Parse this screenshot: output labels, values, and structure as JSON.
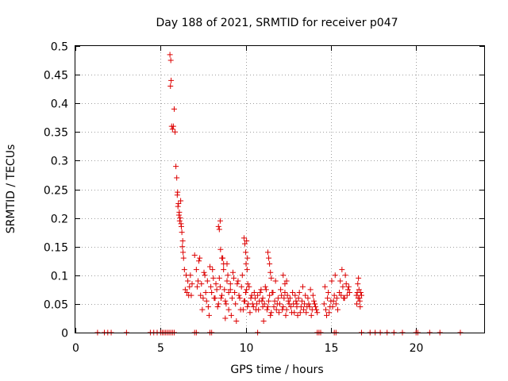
{
  "chart_data": {
    "type": "scatter",
    "title": "Day 188 of 2021, SRMTID for receiver p047",
    "xlabel": "GPS time / hours",
    "ylabel": "SRMTID / TECUs",
    "xlim": [
      0,
      24
    ],
    "ylim": [
      0,
      0.5
    ],
    "x_ticks": [
      0,
      5,
      10,
      15,
      20
    ],
    "x_tick_labels": [
      "0",
      "5",
      "10",
      "15",
      "20"
    ],
    "y_ticks": [
      0,
      0.05,
      0.1,
      0.15,
      0.2,
      0.25,
      0.3,
      0.35,
      0.4,
      0.45,
      0.5
    ],
    "y_tick_labels": [
      "0",
      "0.05",
      "0.1",
      "0.15",
      "0.2",
      "0.25",
      "0.3",
      "0.35",
      "0.4",
      "0.45",
      "0.5"
    ],
    "grid": true,
    "marker": "plus",
    "series_color": "#dd0000",
    "series": [
      {
        "name": "SRMTID",
        "x": [
          1.3,
          1.7,
          1.9,
          2.1,
          3.0,
          4.4,
          4.6,
          4.8,
          5.0,
          5.1,
          5.2,
          5.3,
          5.4,
          5.5,
          5.6,
          5.7,
          5.8,
          7.0,
          7.1,
          7.9,
          8.0,
          10.7,
          14.2,
          14.3,
          14.4,
          15.2,
          15.3,
          16.8,
          17.3,
          17.6,
          17.9,
          18.3,
          18.7,
          19.2,
          20.0,
          20.1,
          20.8,
          21.4,
          22.6,
          5.55,
          5.6,
          5.62,
          5.58,
          5.65,
          5.7,
          5.75,
          5.8,
          5.85,
          5.9,
          5.95,
          6.0,
          6.05,
          6.1,
          6.15,
          6.2,
          6.25,
          6.3,
          6.35,
          6.4,
          6.5,
          6.6,
          6.7,
          6.8,
          5.98,
          6.02,
          6.08,
          6.12,
          6.18,
          6.22,
          6.28,
          6.32,
          6.45,
          6.55,
          6.65,
          6.75,
          6.85,
          7.0,
          7.1,
          7.2,
          7.3,
          7.4,
          7.5,
          7.6,
          7.7,
          7.8,
          7.9,
          8.0,
          8.1,
          8.2,
          8.3,
          8.4,
          8.5,
          8.6,
          8.7,
          8.8,
          8.9,
          9.0,
          7.15,
          7.25,
          7.35,
          7.45,
          7.55,
          7.65,
          7.75,
          7.85,
          7.95,
          8.05,
          8.15,
          8.25,
          8.35,
          8.45,
          8.55,
          8.65,
          8.75,
          8.85,
          8.95,
          8.4,
          8.45,
          8.5,
          8.52,
          8.6,
          8.7,
          8.8,
          8.9,
          9.0,
          9.1,
          9.1,
          9.2,
          9.3,
          9.4,
          9.5,
          9.6,
          9.7,
          9.8,
          9.9,
          10.0,
          10.1,
          10.2,
          10.3,
          10.4,
          10.5,
          10.6,
          10.7,
          10.8,
          10.9,
          11.0,
          9.15,
          9.25,
          9.35,
          9.45,
          9.55,
          9.65,
          9.75,
          9.85,
          9.95,
          10.05,
          10.15,
          10.25,
          10.35,
          10.45,
          10.55,
          10.65,
          10.75,
          10.85,
          10.95,
          9.9,
          9.95,
          10.0,
          10.02,
          10.05,
          10.08,
          10.1,
          10.12,
          11.0,
          11.1,
          11.2,
          11.3,
          11.4,
          11.5,
          11.6,
          11.7,
          11.8,
          11.9,
          12.0,
          12.1,
          12.2,
          12.3,
          12.4,
          12.5,
          12.6,
          12.7,
          12.8,
          12.9,
          13.0,
          11.05,
          11.15,
          11.25,
          11.35,
          11.45,
          11.55,
          11.65,
          11.75,
          11.85,
          11.95,
          12.05,
          12.15,
          12.25,
          12.35,
          12.45,
          12.55,
          12.65,
          12.75,
          12.85,
          12.95,
          11.3,
          11.35,
          11.4,
          11.45,
          11.5,
          12.2,
          12.3,
          12.4,
          13.0,
          13.1,
          13.2,
          13.3,
          13.4,
          13.5,
          13.6,
          13.7,
          13.8,
          13.9,
          14.0,
          14.1,
          14.2,
          13.05,
          13.15,
          13.25,
          13.35,
          13.45,
          13.55,
          13.65,
          13.75,
          13.85,
          13.95,
          14.05,
          14.15,
          14.6,
          14.7,
          14.8,
          14.9,
          15.0,
          15.1,
          15.2,
          15.3,
          15.4,
          14.65,
          14.75,
          14.85,
          14.95,
          15.05,
          15.15,
          15.25,
          15.35,
          15.5,
          15.6,
          15.7,
          15.8,
          15.9,
          16.0,
          16.1,
          15.55,
          15.65,
          15.75,
          15.85,
          15.95,
          16.05,
          16.5,
          16.55,
          16.6,
          16.65,
          16.7,
          16.75,
          16.8,
          16.52,
          16.58,
          16.62,
          16.68,
          16.72
        ],
        "y": [
          0,
          0,
          0,
          0,
          0,
          0,
          0,
          0,
          0,
          0,
          0,
          0,
          0,
          0,
          0,
          0,
          0,
          0,
          0,
          0,
          0,
          0,
          0,
          0,
          0,
          0,
          0,
          0,
          0,
          0,
          0,
          0,
          0,
          0,
          0,
          0,
          0,
          0,
          0,
          0.485,
          0.475,
          0.44,
          0.43,
          0.36,
          0.355,
          0.36,
          0.39,
          0.35,
          0.29,
          0.27,
          0.245,
          0.225,
          0.21,
          0.2,
          0.19,
          0.175,
          0.16,
          0.13,
          0.11,
          0.1,
          0.09,
          0.08,
          0.065,
          0.24,
          0.22,
          0.205,
          0.195,
          0.23,
          0.185,
          0.15,
          0.14,
          0.075,
          0.07,
          0.065,
          0.1,
          0.085,
          0.135,
          0.11,
          0.09,
          0.13,
          0.085,
          0.06,
          0.1,
          0.055,
          0.045,
          0.115,
          0.07,
          0.095,
          0.06,
          0.075,
          0.05,
          0.08,
          0.065,
          0.12,
          0.055,
          0.09,
          0.07,
          0.08,
          0.125,
          0.065,
          0.04,
          0.105,
          0.07,
          0.09,
          0.03,
          0.08,
          0.11,
          0.06,
          0.085,
          0.045,
          0.095,
          0.06,
          0.13,
          0.075,
          0.05,
          0.1,
          0.185,
          0.18,
          0.195,
          0.145,
          0.13,
          0.11,
          0.025,
          0.12,
          0.04,
          0.085,
          0.075,
          0.06,
          0.095,
          0.05,
          0.085,
          0.065,
          0.04,
          0.1,
          0.055,
          0.07,
          0.045,
          0.08,
          0.06,
          0.05,
          0.07,
          0.04,
          0.065,
          0.055,
          0.075,
          0.045,
          0.03,
          0.105,
          0.07,
          0.02,
          0.09,
          0.06,
          0.08,
          0.04,
          0.055,
          0.075,
          0.05,
          0.035,
          0.065,
          0.045,
          0.06,
          0.05,
          0.04,
          0.07,
          0.055,
          0.165,
          0.155,
          0.14,
          0.12,
          0.16,
          0.11,
          0.13,
          0.085,
          0.06,
          0.05,
          0.075,
          0.045,
          0.065,
          0.035,
          0.07,
          0.055,
          0.04,
          0.06,
          0.05,
          0.065,
          0.045,
          0.07,
          0.04,
          0.055,
          0.06,
          0.035,
          0.05,
          0.065,
          0.045,
          0.02,
          0.08,
          0.04,
          0.055,
          0.03,
          0.07,
          0.045,
          0.09,
          0.05,
          0.035,
          0.075,
          0.04,
          0.06,
          0.03,
          0.065,
          0.05,
          0.045,
          0.07,
          0.035,
          0.055,
          0.14,
          0.13,
          0.12,
          0.105,
          0.095,
          0.1,
          0.085,
          0.09,
          0.05,
          0.06,
          0.035,
          0.055,
          0.04,
          0.065,
          0.045,
          0.05,
          0.075,
          0.04,
          0.055,
          0.045,
          0.035,
          0.03,
          0.07,
          0.045,
          0.08,
          0.05,
          0.035,
          0.06,
          0.045,
          0.03,
          0.065,
          0.05,
          0.04,
          0.05,
          0.04,
          0.06,
          0.035,
          0.055,
          0.045,
          0.065,
          0.05,
          0.04,
          0.08,
          0.03,
          0.07,
          0.045,
          0.09,
          0.055,
          0.1,
          0.06,
          0.07,
          0.065,
          0.08,
          0.06,
          0.085,
          0.075,
          0.07,
          0.09,
          0.11,
          0.06,
          0.1,
          0.065,
          0.08,
          0.065,
          0.07,
          0.06,
          0.075,
          0.055,
          0.07,
          0.065,
          0.05,
          0.085,
          0.095,
          0.06,
          0.045
        ]
      }
    ]
  }
}
